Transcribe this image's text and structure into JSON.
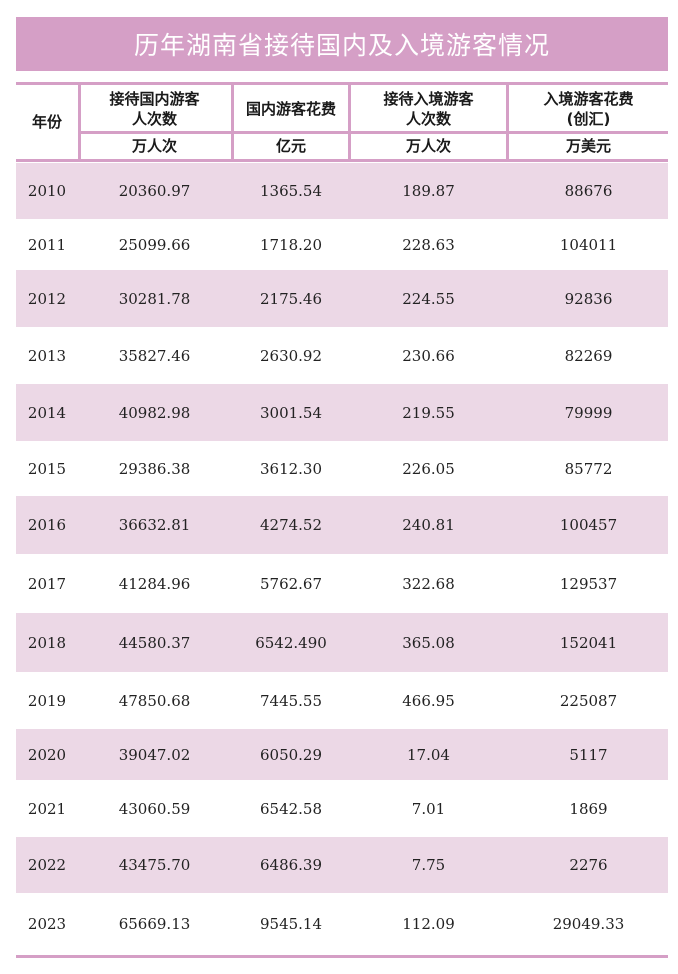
{
  "title": "历年湖南省接待国内及入境游客情况",
  "header": {
    "year": "年份",
    "col1_line1": "接待国内游客",
    "col1_line2": "人次数",
    "col2": "国内游客花费",
    "col3_line1": "接待入境游客",
    "col3_line2": "人次数",
    "col4_line1": "入境游客花费",
    "col4_line2": "(创汇)",
    "unit1": "万人次",
    "unit2": "亿元",
    "unit3": "万人次",
    "unit4": "万美元"
  },
  "rows": [
    {
      "year": "2010",
      "domestic_visits": "20360.97",
      "domestic_spend": "1365.54",
      "inbound_visits": "189.87",
      "inbound_spend": "88676"
    },
    {
      "year": "2011",
      "domestic_visits": "25099.66",
      "domestic_spend": "1718.20",
      "inbound_visits": "228.63",
      "inbound_spend": "104011"
    },
    {
      "year": "2012",
      "domestic_visits": "30281.78",
      "domestic_spend": "2175.46",
      "inbound_visits": "224.55",
      "inbound_spend": "92836"
    },
    {
      "year": "2013",
      "domestic_visits": "35827.46",
      "domestic_spend": "2630.92",
      "inbound_visits": "230.66",
      "inbound_spend": "82269"
    },
    {
      "year": "2014",
      "domestic_visits": "40982.98",
      "domestic_spend": "3001.54",
      "inbound_visits": "219.55",
      "inbound_spend": "79999"
    },
    {
      "year": "2015",
      "domestic_visits": "29386.38",
      "domestic_spend": "3612.30",
      "inbound_visits": "226.05",
      "inbound_spend": "85772"
    },
    {
      "year": "2016",
      "domestic_visits": "36632.81",
      "domestic_spend": "4274.52",
      "inbound_visits": "240.81",
      "inbound_spend": "100457"
    },
    {
      "year": "2017",
      "domestic_visits": "41284.96",
      "domestic_spend": "5762.67",
      "inbound_visits": "322.68",
      "inbound_spend": "129537"
    },
    {
      "year": "2018",
      "domestic_visits": "44580.37",
      "domestic_spend": "6542.490",
      "inbound_visits": "365.08",
      "inbound_spend": "152041"
    },
    {
      "year": "2019",
      "domestic_visits": "47850.68",
      "domestic_spend": "7445.55",
      "inbound_visits": "466.95",
      "inbound_spend": "225087"
    },
    {
      "year": "2020",
      "domestic_visits": "39047.02",
      "domestic_spend": "6050.29",
      "inbound_visits": "17.04",
      "inbound_spend": "5117"
    },
    {
      "year": "2021",
      "domestic_visits": "43060.59",
      "domestic_spend": "6542.58",
      "inbound_visits": "7.01",
      "inbound_spend": "1869"
    },
    {
      "year": "2022",
      "domestic_visits": "43475.70",
      "domestic_spend": "6486.39",
      "inbound_visits": "7.75",
      "inbound_spend": "2276"
    },
    {
      "year": "2023",
      "domestic_visits": "65669.13",
      "domestic_spend": "9545.14",
      "inbound_visits": "112.09",
      "inbound_spend": "29049.33"
    }
  ],
  "colors": {
    "accent": "#d59fc6",
    "row_shade": "#ecd8e6"
  }
}
